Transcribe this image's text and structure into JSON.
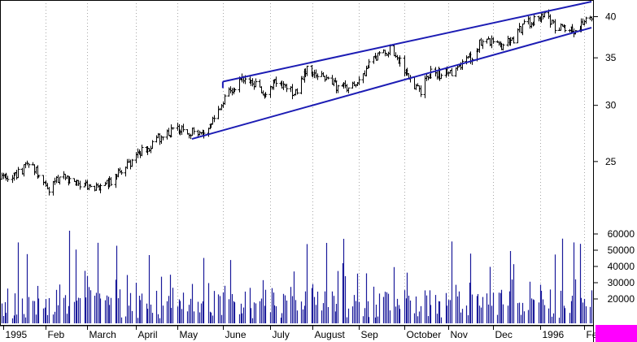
{
  "chart_data": {
    "type": "ohlc_with_volume",
    "title": "",
    "price_axis": {
      "scale": "log",
      "ticks": [
        25,
        30,
        35,
        40
      ],
      "tick_labels": [
        "25",
        "30",
        "35",
        "40"
      ],
      "range": [
        21,
        42
      ]
    },
    "volume_axis": {
      "ticks": [
        20000,
        30000,
        40000,
        50000,
        60000
      ],
      "tick_labels": [
        "20000",
        "30000",
        "40000",
        "50000",
        "60000"
      ],
      "range": [
        5000,
        68000
      ]
    },
    "x_axis": {
      "labels": [
        "1995",
        "Feb",
        "March",
        "April",
        "May",
        "June",
        "July",
        "August",
        "Sep",
        "October",
        "Nov",
        "Dec",
        "1996",
        "Fe"
      ],
      "label_dates": [
        "1995-01-03",
        "1995-02-01",
        "1995-03-01",
        "1995-04-03",
        "1995-05-01",
        "1995-06-01",
        "1995-07-03",
        "1995-08-01",
        "1995-09-01",
        "1995-10-02",
        "1995-11-01",
        "1995-12-01",
        "1996-01-02",
        "1996-02-01"
      ],
      "start": "1995-01-02",
      "end": "1996-02-06"
    },
    "channel": {
      "upper": [
        [
          "1995-06-01",
          32.4
        ],
        [
          "1996-02-06",
          42.0
        ]
      ],
      "lower": [
        [
          "1995-05-11",
          26.9
        ],
        [
          "1996-02-06",
          38.6
        ]
      ]
    },
    "price_anchors": [
      [
        "1995-01-02",
        23.6
      ],
      [
        "1995-01-12",
        24.0
      ],
      [
        "1995-01-20",
        24.7
      ],
      [
        "1995-01-27",
        24.0
      ],
      [
        "1995-02-03",
        22.6
      ],
      [
        "1995-02-10",
        23.8
      ],
      [
        "1995-02-20",
        23.5
      ],
      [
        "1995-03-01",
        23.1
      ],
      [
        "1995-03-10",
        23.0
      ],
      [
        "1995-03-17",
        23.4
      ],
      [
        "1995-03-24",
        24.3
      ],
      [
        "1995-03-31",
        24.9
      ],
      [
        "1995-04-07",
        25.8
      ],
      [
        "1995-04-14",
        26.4
      ],
      [
        "1995-04-21",
        27.3
      ],
      [
        "1995-04-28",
        27.6
      ],
      [
        "1995-05-05",
        27.9
      ],
      [
        "1995-05-12",
        27.4
      ],
      [
        "1995-05-19",
        27.6
      ],
      [
        "1995-05-26",
        28.9
      ],
      [
        "1995-06-01",
        30.3
      ],
      [
        "1995-06-08",
        31.9
      ],
      [
        "1995-06-15",
        32.5
      ],
      [
        "1995-06-22",
        32.3
      ],
      [
        "1995-06-29",
        31.3
      ],
      [
        "1995-07-07",
        32.4
      ],
      [
        "1995-07-14",
        31.6
      ],
      [
        "1995-07-21",
        31.3
      ],
      [
        "1995-07-28",
        33.6
      ],
      [
        "1995-08-04",
        33.3
      ],
      [
        "1995-08-11",
        32.5
      ],
      [
        "1995-08-18",
        31.8
      ],
      [
        "1995-08-25",
        32.0
      ],
      [
        "1995-09-01",
        32.5
      ],
      [
        "1995-09-08",
        34.2
      ],
      [
        "1995-09-15",
        35.5
      ],
      [
        "1995-09-22",
        35.9
      ],
      [
        "1995-09-29",
        34.5
      ],
      [
        "1995-10-06",
        32.6
      ],
      [
        "1995-10-13",
        31.5
      ],
      [
        "1995-10-20",
        33.3
      ],
      [
        "1995-10-27",
        33.1
      ],
      [
        "1995-11-03",
        33.5
      ],
      [
        "1995-11-10",
        34.3
      ],
      [
        "1995-11-17",
        35.2
      ],
      [
        "1995-11-24",
        37.3
      ],
      [
        "1995-12-01",
        36.6
      ],
      [
        "1995-12-08",
        36.4
      ],
      [
        "1995-12-15",
        37.2
      ],
      [
        "1995-12-22",
        39.0
      ],
      [
        "1995-12-29",
        39.5
      ],
      [
        "1996-01-05",
        40.2
      ],
      [
        "1996-01-12",
        38.8
      ],
      [
        "1996-01-19",
        38.8
      ],
      [
        "1996-01-26",
        38.3
      ],
      [
        "1996-02-02",
        39.6
      ],
      [
        "1996-02-06",
        39.8
      ]
    ],
    "volume_range": [
      5000,
      62000
    ],
    "grid": "vertical dotted at month boundaries",
    "volume_axis_on": "right",
    "price_axis_on": "right"
  }
}
